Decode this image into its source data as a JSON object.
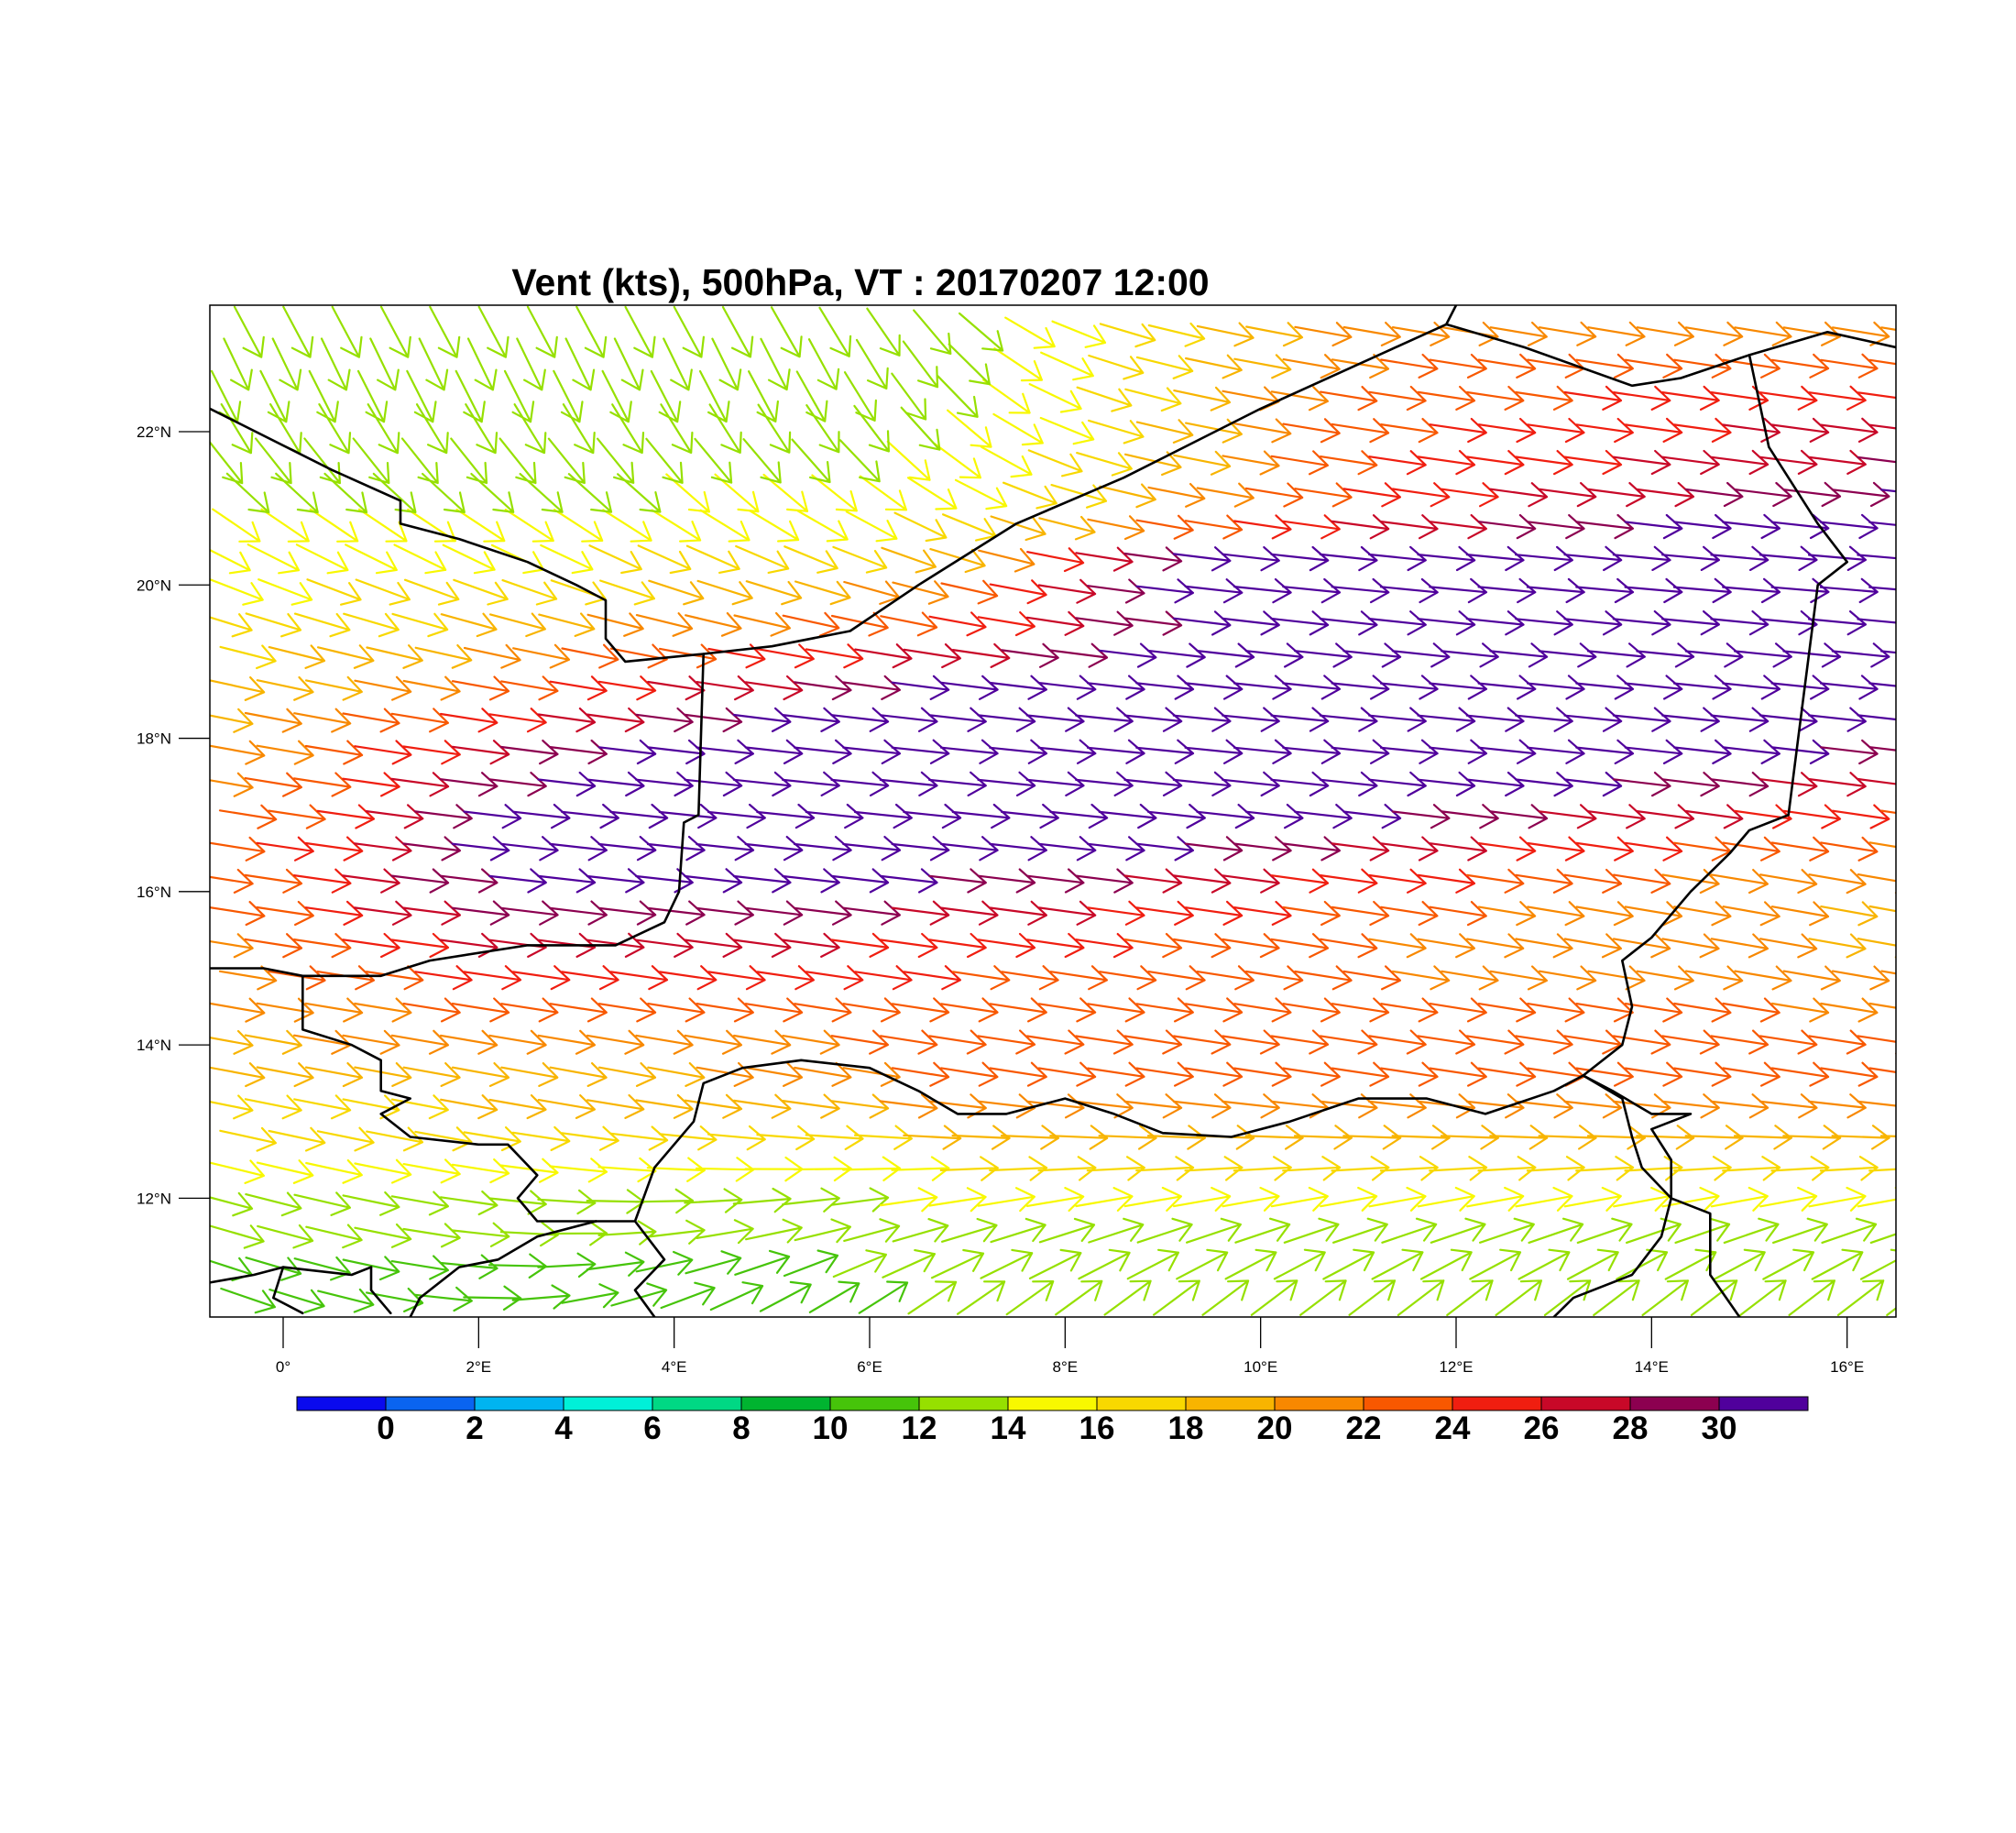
{
  "title": "Vent (kts), 500hPa, VT : 20170207  12:00",
  "map": {
    "lon_range": [
      -0.75,
      16.5
    ],
    "lat_range": [
      10.45,
      23.65
    ],
    "x_ticks": [
      {
        "value": 0,
        "label": "0°"
      },
      {
        "value": 2,
        "label": "2°E"
      },
      {
        "value": 4,
        "label": "4°E"
      },
      {
        "value": 6,
        "label": "6°E"
      },
      {
        "value": 8,
        "label": "8°E"
      },
      {
        "value": 10,
        "label": "10°E"
      },
      {
        "value": 12,
        "label": "12°E"
      },
      {
        "value": 14,
        "label": "14°E"
      },
      {
        "value": 16,
        "label": "16°E"
      }
    ],
    "y_ticks": [
      {
        "value": 12,
        "label": "12°N"
      },
      {
        "value": 14,
        "label": "14°N"
      },
      {
        "value": 16,
        "label": "16°N"
      },
      {
        "value": 18,
        "label": "18°N"
      },
      {
        "value": 20,
        "label": "20°N"
      },
      {
        "value": 22,
        "label": "22°N"
      }
    ],
    "borders": [
      [
        [
          -0.75,
          22.3
        ],
        [
          0.5,
          21.5
        ],
        [
          1.2,
          21.1
        ],
        [
          1.2,
          20.8
        ],
        [
          1.8,
          20.6
        ],
        [
          2.5,
          20.3
        ],
        [
          3.0,
          20.0
        ],
        [
          3.3,
          19.8
        ],
        [
          3.3,
          19.3
        ],
        [
          3.5,
          19.0
        ],
        [
          4.3,
          19.1
        ],
        [
          5.0,
          19.2
        ],
        [
          5.8,
          19.4
        ],
        [
          6.5,
          20.0
        ],
        [
          7.5,
          20.8
        ],
        [
          8.6,
          21.4
        ],
        [
          10.0,
          22.3
        ],
        [
          11.9,
          23.4
        ],
        [
          12.7,
          23.1
        ],
        [
          13.8,
          22.6
        ],
        [
          14.3,
          22.7
        ],
        [
          15.0,
          23.0
        ],
        [
          15.8,
          23.3
        ],
        [
          16.5,
          23.1
        ]
      ],
      [
        [
          12.0,
          23.65
        ],
        [
          11.9,
          23.4
        ]
      ],
      [
        [
          15.0,
          23.0
        ],
        [
          15.2,
          21.8
        ],
        [
          15.7,
          20.8
        ],
        [
          16.0,
          20.3
        ],
        [
          15.7,
          20.0
        ],
        [
          15.6,
          19.0
        ],
        [
          15.5,
          18.0
        ],
        [
          15.4,
          17.0
        ],
        [
          15.0,
          16.8
        ],
        [
          14.8,
          16.5
        ],
        [
          14.4,
          16.0
        ],
        [
          14.0,
          15.4
        ],
        [
          13.7,
          15.1
        ],
        [
          13.8,
          14.5
        ],
        [
          13.7,
          14.0
        ],
        [
          13.3,
          13.6
        ]
      ],
      [
        [
          4.3,
          19.1
        ],
        [
          4.25,
          17.0
        ],
        [
          4.1,
          16.9
        ],
        [
          4.05,
          16.0
        ],
        [
          3.9,
          15.6
        ],
        [
          3.4,
          15.3
        ],
        [
          2.5,
          15.3
        ],
        [
          1.5,
          15.1
        ],
        [
          1.0,
          14.9
        ],
        [
          0.2,
          14.9
        ],
        [
          -0.2,
          15.0
        ],
        [
          -0.75,
          15.0
        ]
      ],
      [
        [
          0.2,
          14.9
        ],
        [
          0.2,
          14.2
        ],
        [
          0.7,
          14.0
        ],
        [
          1.0,
          13.8
        ],
        [
          1.0,
          13.4
        ],
        [
          1.3,
          13.3
        ],
        [
          1.0,
          13.1
        ],
        [
          1.3,
          12.8
        ],
        [
          2.0,
          12.7
        ],
        [
          2.3,
          12.7
        ],
        [
          2.6,
          12.3
        ],
        [
          2.4,
          12.0
        ],
        [
          2.6,
          11.7
        ],
        [
          3.2,
          11.7
        ]
      ],
      [
        [
          -0.75,
          10.9
        ],
        [
          -0.3,
          11.0
        ],
        [
          0.0,
          11.1
        ],
        [
          0.7,
          11.0
        ],
        [
          0.9,
          11.1
        ]
      ],
      [
        [
          0.9,
          11.1
        ],
        [
          0.9,
          10.8
        ],
        [
          1.1,
          10.5
        ]
      ],
      [
        [
          0.0,
          11.1
        ],
        [
          -0.1,
          10.7
        ],
        [
          0.2,
          10.5
        ]
      ],
      [
        [
          3.2,
          11.7
        ],
        [
          3.6,
          11.7
        ],
        [
          3.9,
          11.2
        ],
        [
          3.6,
          10.8
        ],
        [
          3.8,
          10.45
        ]
      ],
      [
        [
          3.2,
          11.7
        ],
        [
          2.6,
          11.5
        ],
        [
          2.2,
          11.2
        ],
        [
          1.8,
          11.1
        ],
        [
          1.4,
          10.7
        ],
        [
          1.3,
          10.45
        ]
      ],
      [
        [
          3.6,
          11.7
        ],
        [
          3.8,
          12.4
        ],
        [
          4.2,
          13.0
        ],
        [
          4.3,
          13.5
        ],
        [
          4.7,
          13.7
        ],
        [
          5.3,
          13.8
        ],
        [
          6.0,
          13.7
        ],
        [
          6.5,
          13.4
        ],
        [
          6.9,
          13.1
        ],
        [
          7.4,
          13.1
        ],
        [
          8.0,
          13.3
        ],
        [
          8.5,
          13.1
        ],
        [
          9.0,
          12.85
        ],
        [
          9.7,
          12.8
        ],
        [
          10.3,
          13.0
        ],
        [
          11.0,
          13.3
        ],
        [
          11.7,
          13.3
        ],
        [
          12.3,
          13.1
        ],
        [
          13.0,
          13.4
        ],
        [
          13.3,
          13.6
        ]
      ],
      [
        [
          13.3,
          13.6
        ],
        [
          13.6,
          13.4
        ],
        [
          14.0,
          13.1
        ],
        [
          14.4,
          13.1
        ],
        [
          14.0,
          12.9
        ],
        [
          14.2,
          12.5
        ],
        [
          14.2,
          12.0
        ],
        [
          14.6,
          11.8
        ],
        [
          14.6,
          11.0
        ],
        [
          14.9,
          10.45
        ]
      ],
      [
        [
          13.3,
          13.6
        ],
        [
          13.7,
          13.3
        ],
        [
          13.8,
          12.8
        ],
        [
          13.9,
          12.4
        ],
        [
          14.2,
          12.0
        ],
        [
          14.1,
          11.5
        ],
        [
          13.8,
          11.0
        ],
        [
          13.2,
          10.7
        ],
        [
          13.0,
          10.45
        ]
      ]
    ]
  },
  "colorbar": {
    "labels": [
      "0",
      "2",
      "4",
      "6",
      "8",
      "10",
      "12",
      "14",
      "16",
      "18",
      "20",
      "22",
      "24",
      "26",
      "28",
      "30"
    ],
    "colors": [
      "#0a0aee",
      "#0a64f0",
      "#00b4f0",
      "#00f0d8",
      "#00d884",
      "#00b430",
      "#46c40a",
      "#96e000",
      "#f8f800",
      "#f8d800",
      "#f8b400",
      "#f88800",
      "#f85800",
      "#f01e10",
      "#c80828",
      "#8c0050",
      "#50009c"
    ]
  },
  "wind_field": {
    "description": "500hPa wind barbs, mostly westerly; jet core ~20N east of 8E",
    "levels_kts": [
      0,
      2,
      4,
      6,
      8,
      10,
      12,
      14,
      16,
      18,
      20,
      22,
      24,
      26,
      28,
      30
    ]
  }
}
